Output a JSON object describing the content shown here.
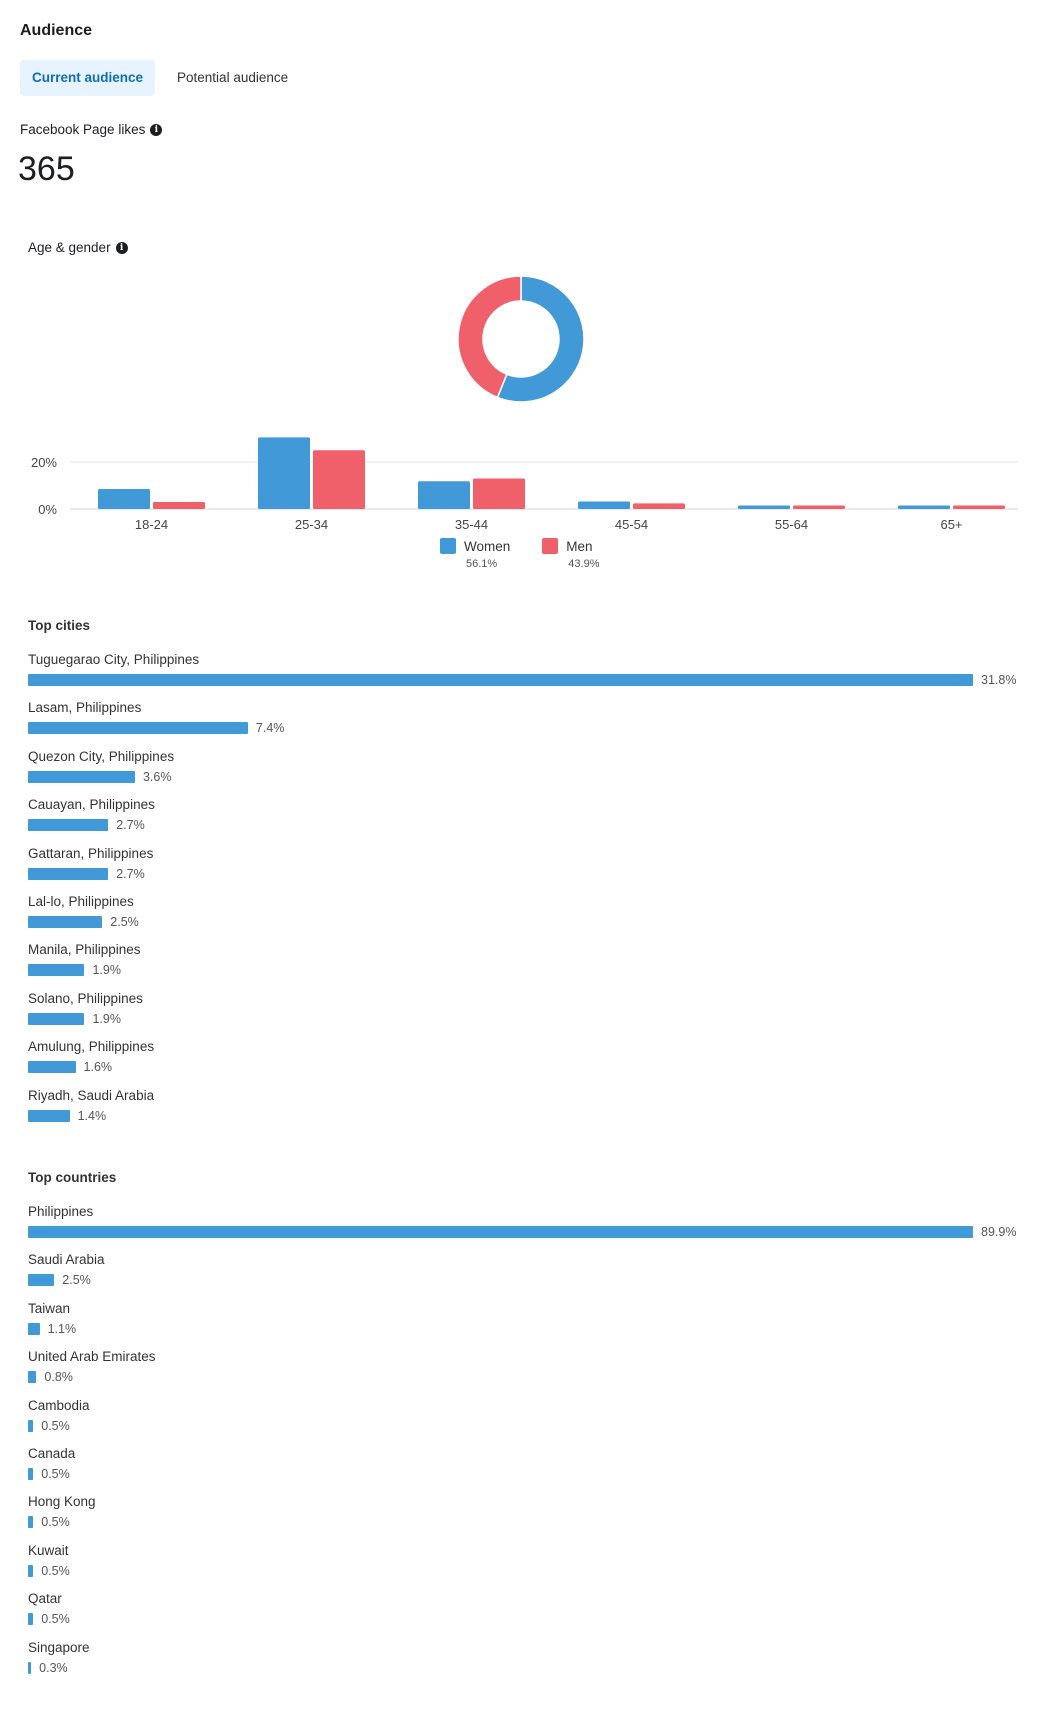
{
  "header": {
    "title": "Audience"
  },
  "tabs": [
    {
      "label": "Current audience",
      "active": true
    },
    {
      "label": "Potential audience",
      "active": false
    }
  ],
  "likes": {
    "label": "Facebook Page likes",
    "value": "365"
  },
  "age_gender": {
    "label": "Age & gender"
  },
  "colors": {
    "women": "#4299d8",
    "men": "#f0606a",
    "accent": "#0f6db3"
  },
  "chart_data": [
    {
      "type": "pie",
      "title": "Age & gender",
      "labels": [
        "Women",
        "Men"
      ],
      "values": [
        56.1,
        43.9
      ],
      "legend": [
        {
          "name": "Women",
          "pct": "56.1%"
        },
        {
          "name": "Men",
          "pct": "43.9%"
        }
      ]
    },
    {
      "type": "bar",
      "categories": [
        "18-24",
        "25-34",
        "35-44",
        "45-54",
        "55-64",
        "65+"
      ],
      "series": [
        {
          "name": "Women",
          "values": [
            8.5,
            30.5,
            11.8,
            3.2,
            1.5,
            1.5
          ]
        },
        {
          "name": "Men",
          "values": [
            3.0,
            25.0,
            13.0,
            2.4,
            1.5,
            1.5
          ]
        }
      ],
      "yticks": [
        "0%",
        "20%"
      ],
      "ytick_values": [
        0,
        20
      ],
      "ylim": [
        0,
        32
      ]
    }
  ],
  "top_cities": {
    "title": "Top cities",
    "items": [
      {
        "name": "Tuguegarao City, Philippines",
        "pct": "31.8%",
        "value": 31.8
      },
      {
        "name": "Lasam, Philippines",
        "pct": "7.4%",
        "value": 7.4
      },
      {
        "name": "Quezon City, Philippines",
        "pct": "3.6%",
        "value": 3.6
      },
      {
        "name": "Cauayan, Philippines",
        "pct": "2.7%",
        "value": 2.7
      },
      {
        "name": "Gattaran, Philippines",
        "pct": "2.7%",
        "value": 2.7
      },
      {
        "name": "Lal-lo, Philippines",
        "pct": "2.5%",
        "value": 2.5
      },
      {
        "name": "Manila, Philippines",
        "pct": "1.9%",
        "value": 1.9
      },
      {
        "name": "Solano, Philippines",
        "pct": "1.9%",
        "value": 1.9
      },
      {
        "name": "Amulung, Philippines",
        "pct": "1.6%",
        "value": 1.6
      },
      {
        "name": "Riyadh, Saudi Arabia",
        "pct": "1.4%",
        "value": 1.4
      }
    ]
  },
  "top_countries": {
    "title": "Top countries",
    "items": [
      {
        "name": "Philippines",
        "pct": "89.9%",
        "value": 89.9
      },
      {
        "name": "Saudi Arabia",
        "pct": "2.5%",
        "value": 2.5
      },
      {
        "name": "Taiwan",
        "pct": "1.1%",
        "value": 1.1
      },
      {
        "name": "United Arab Emirates",
        "pct": "0.8%",
        "value": 0.8
      },
      {
        "name": "Cambodia",
        "pct": "0.5%",
        "value": 0.5
      },
      {
        "name": "Canada",
        "pct": "0.5%",
        "value": 0.5
      },
      {
        "name": "Hong Kong",
        "pct": "0.5%",
        "value": 0.5
      },
      {
        "name": "Kuwait",
        "pct": "0.5%",
        "value": 0.5
      },
      {
        "name": "Qatar",
        "pct": "0.5%",
        "value": 0.5
      },
      {
        "name": "Singapore",
        "pct": "0.3%",
        "value": 0.3
      }
    ]
  }
}
